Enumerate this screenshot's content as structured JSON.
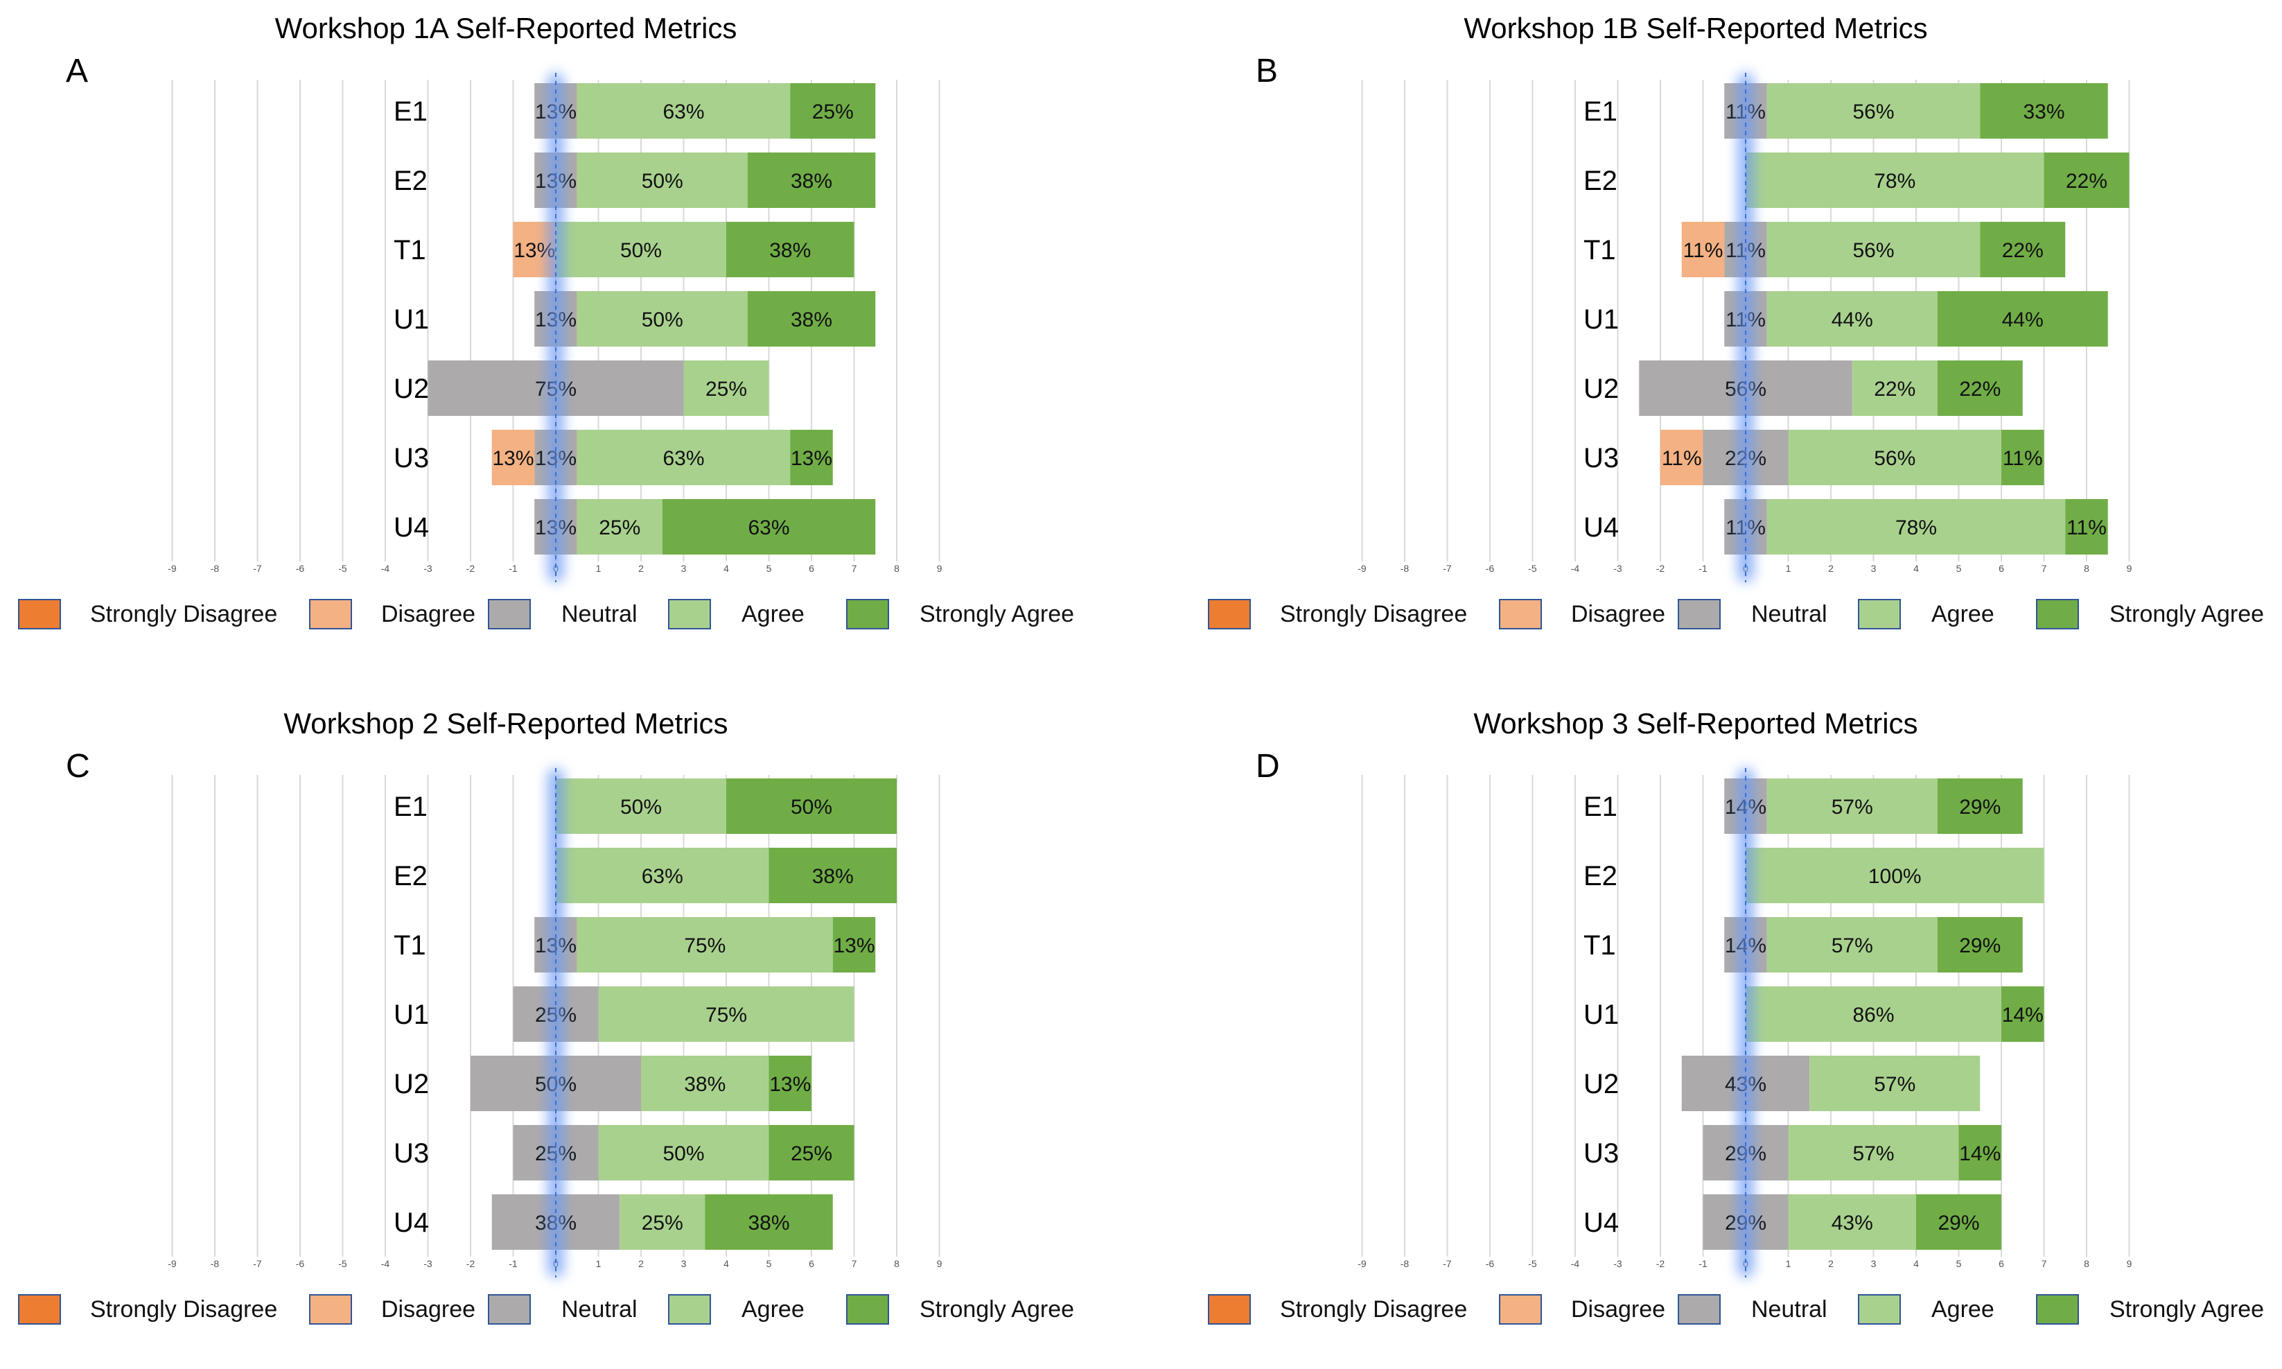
{
  "colors": {
    "strongly_disagree": "#ED7D31",
    "disagree": "#F4B183",
    "neutral": "#ADAAAB",
    "agree": "#A9D18E",
    "strongly_agree": "#70AD47",
    "highlight": "#6E9CF5",
    "gridline": "#D9D9D9"
  },
  "legend": [
    "Strongly Disagree",
    "Disagree",
    "Neutral",
    "Agree",
    "Strongly Agree"
  ],
  "chart_data": [
    {
      "panel_label": "A",
      "type": "bar",
      "orientation": "horizontal-diverging-stacked",
      "title": "Workshop 1A Self-Reported Metrics",
      "x_ticks": [
        -9,
        -8,
        -7,
        -6,
        -5,
        -4,
        -3,
        -2,
        -1,
        0,
        1,
        2,
        3,
        4,
        5,
        6,
        7,
        8,
        9
      ],
      "xlim": [
        -9,
        9
      ],
      "categories": [
        "E1",
        "E2",
        "T1",
        "U1",
        "U2",
        "U3",
        "U4"
      ],
      "series": [
        {
          "name": "Strongly Disagree",
          "values": [
            0,
            0,
            0,
            0,
            0,
            0,
            0
          ],
          "labels": [
            "",
            "",
            "",
            "",
            "",
            "",
            ""
          ]
        },
        {
          "name": "Disagree",
          "values": [
            0,
            0,
            1,
            0,
            0,
            1,
            0
          ],
          "labels": [
            "",
            "",
            "13%",
            "",
            "",
            "13%",
            ""
          ]
        },
        {
          "name": "Neutral",
          "values": [
            1,
            1,
            0,
            1,
            6,
            1,
            1
          ],
          "labels": [
            "13%",
            "13%",
            "",
            "13%",
            "75%",
            "13%",
            "13%"
          ]
        },
        {
          "name": "Agree",
          "values": [
            5,
            4,
            4,
            4,
            2,
            5,
            2
          ],
          "labels": [
            "63%",
            "50%",
            "50%",
            "50%",
            "25%",
            "63%",
            "25%"
          ]
        },
        {
          "name": "Strongly Agree",
          "values": [
            2,
            3,
            3,
            3,
            0,
            1,
            5
          ],
          "labels": [
            "25%",
            "38%",
            "38%",
            "38%",
            "",
            "13%",
            "63%"
          ]
        }
      ]
    },
    {
      "panel_label": "B",
      "type": "bar",
      "orientation": "horizontal-diverging-stacked",
      "title": "Workshop 1B Self-Reported Metrics",
      "x_ticks": [
        -9,
        -8,
        -7,
        -6,
        -5,
        -4,
        -3,
        -2,
        -1,
        0,
        1,
        2,
        3,
        4,
        5,
        6,
        7,
        8,
        9
      ],
      "xlim": [
        -9,
        9
      ],
      "categories": [
        "E1",
        "E2",
        "T1",
        "U1",
        "U2",
        "U3",
        "U4"
      ],
      "series": [
        {
          "name": "Strongly Disagree",
          "values": [
            0,
            0,
            0,
            0,
            0,
            0,
            0
          ],
          "labels": [
            "",
            "",
            "",
            "",
            "",
            "",
            ""
          ]
        },
        {
          "name": "Disagree",
          "values": [
            0,
            0,
            1,
            0,
            0,
            1,
            0
          ],
          "labels": [
            "",
            "",
            "11%",
            "",
            "",
            "11%",
            ""
          ]
        },
        {
          "name": "Neutral",
          "values": [
            1,
            0,
            1,
            1,
            5,
            2,
            1
          ],
          "labels": [
            "11%",
            "",
            "11%",
            "11%",
            "56%",
            "22%",
            "11%"
          ]
        },
        {
          "name": "Agree",
          "values": [
            5,
            7,
            5,
            4,
            2,
            5,
            7
          ],
          "labels": [
            "56%",
            "78%",
            "56%",
            "44%",
            "22%",
            "56%",
            "78%"
          ]
        },
        {
          "name": "Strongly Agree",
          "values": [
            3,
            2,
            2,
            4,
            2,
            1,
            1
          ],
          "labels": [
            "33%",
            "22%",
            "22%",
            "44%",
            "22%",
            "11%",
            "11%"
          ]
        }
      ]
    },
    {
      "panel_label": "C",
      "type": "bar",
      "orientation": "horizontal-diverging-stacked",
      "title": "Workshop 2 Self-Reported Metrics",
      "x_ticks": [
        -9,
        -8,
        -7,
        -6,
        -5,
        -4,
        -3,
        -2,
        -1,
        0,
        1,
        2,
        3,
        4,
        5,
        6,
        7,
        8,
        9
      ],
      "xlim": [
        -9,
        9
      ],
      "categories": [
        "E1",
        "E2",
        "T1",
        "U1",
        "U2",
        "U3",
        "U4"
      ],
      "series": [
        {
          "name": "Strongly Disagree",
          "values": [
            0,
            0,
            0,
            0,
            0,
            0,
            0
          ],
          "labels": [
            "",
            "",
            "",
            "",
            "",
            "",
            ""
          ]
        },
        {
          "name": "Disagree",
          "values": [
            0,
            0,
            0,
            0,
            0,
            0,
            0
          ],
          "labels": [
            "",
            "",
            "",
            "",
            "",
            "",
            ""
          ]
        },
        {
          "name": "Neutral",
          "values": [
            0,
            0,
            1,
            2,
            4,
            2,
            3
          ],
          "labels": [
            "",
            "",
            "13%",
            "25%",
            "50%",
            "25%",
            "38%"
          ]
        },
        {
          "name": "Agree",
          "values": [
            4,
            5,
            6,
            6,
            3,
            4,
            2
          ],
          "labels": [
            "50%",
            "63%",
            "75%",
            "75%",
            "38%",
            "50%",
            "25%"
          ]
        },
        {
          "name": "Strongly Agree",
          "values": [
            4,
            3,
            1,
            0,
            1,
            2,
            3
          ],
          "labels": [
            "50%",
            "38%",
            "13%",
            "",
            "13%",
            "25%",
            "38%"
          ]
        }
      ]
    },
    {
      "panel_label": "D",
      "type": "bar",
      "orientation": "horizontal-diverging-stacked",
      "title": "Workshop 3 Self-Reported Metrics",
      "x_ticks": [
        -9,
        -8,
        -7,
        -6,
        -5,
        -4,
        -3,
        -2,
        -1,
        0,
        1,
        2,
        3,
        4,
        5,
        6,
        7,
        8,
        9
      ],
      "xlim": [
        -9,
        9
      ],
      "categories": [
        "E1",
        "E2",
        "T1",
        "U1",
        "U2",
        "U3",
        "U4"
      ],
      "series": [
        {
          "name": "Strongly Disagree",
          "values": [
            0,
            0,
            0,
            0,
            0,
            0,
            0
          ],
          "labels": [
            "",
            "",
            "",
            "",
            "",
            "",
            ""
          ]
        },
        {
          "name": "Disagree",
          "values": [
            0,
            0,
            0,
            0,
            0,
            0,
            0
          ],
          "labels": [
            "",
            "",
            "",
            "",
            "",
            "",
            ""
          ]
        },
        {
          "name": "Neutral",
          "values": [
            1,
            0,
            1,
            0,
            3,
            2,
            2
          ],
          "labels": [
            "14%",
            "",
            "14%",
            "",
            "43%",
            "29%",
            "29%"
          ]
        },
        {
          "name": "Agree",
          "values": [
            4,
            7,
            4,
            6,
            4,
            4,
            3
          ],
          "labels": [
            "57%",
            "100%",
            "57%",
            "86%",
            "57%",
            "57%",
            "43%"
          ]
        },
        {
          "name": "Strongly Agree",
          "values": [
            2,
            0,
            2,
            1,
            0,
            1,
            2
          ],
          "labels": [
            "29%",
            "",
            "29%",
            "14%",
            "",
            "14%",
            "29%"
          ]
        }
      ]
    }
  ]
}
